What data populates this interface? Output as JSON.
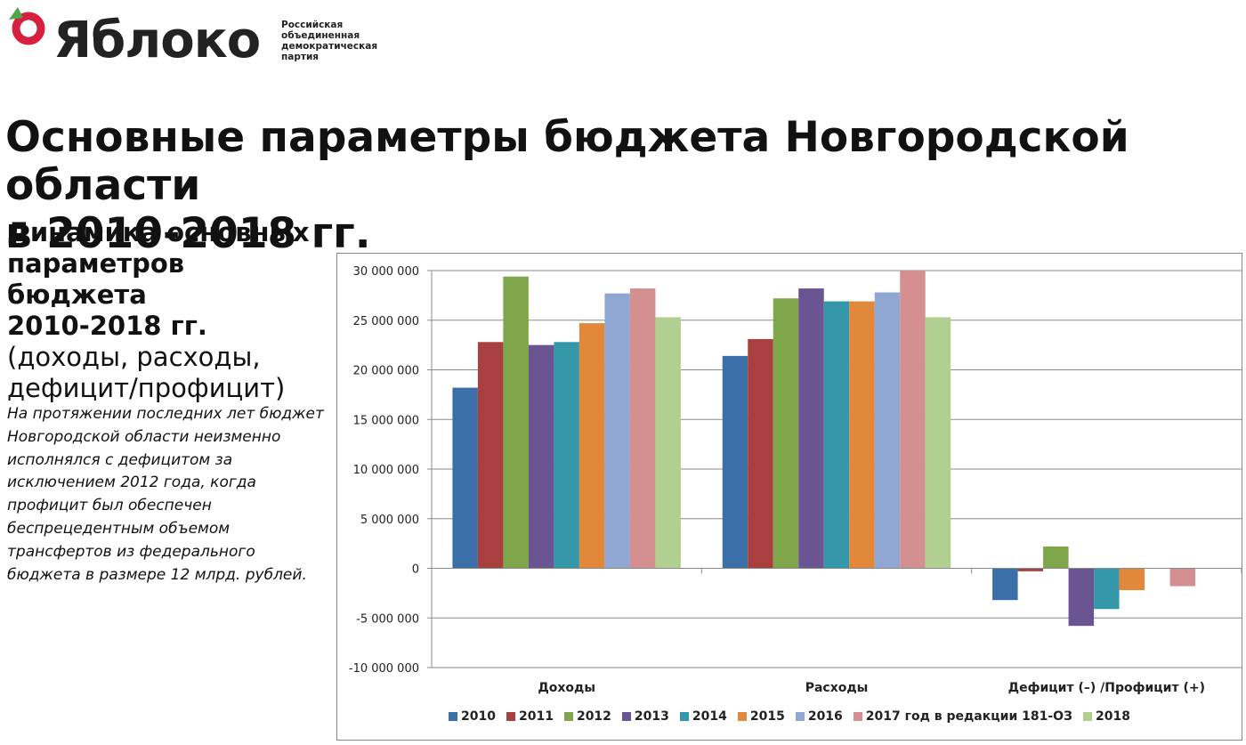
{
  "header": {
    "logo_text": "Яблоко",
    "logo_sub": [
      "Российская",
      "объединенная",
      "демократическая",
      "партия"
    ],
    "logo_colors": {
      "ring": "#d6203f",
      "leaf": "#4aa84a"
    }
  },
  "title": [
    "Основные параметры бюджета Новгородской области",
    "в 2010-2018 гг."
  ],
  "side": {
    "title_bold": [
      "Динамика основных",
      "параметров бюджета",
      "2010-2018 гг."
    ],
    "title_normal": [
      "(доходы, расходы,",
      "дефицит/профицит)"
    ],
    "text": "На протяжении последних лет бюджет Новгородской области неизменно исполнялся с дефицитом за исключением 2012 года, когда профицит был обеспечен беспрецедентным объемом трансфертов из федерального бюджета в размере 12 млрд. рублей."
  },
  "chart_data": {
    "type": "bar",
    "categories": [
      "Доходы",
      "Расходы",
      "Дефицит (–) /Профицит (+)"
    ],
    "ylim": [
      -10000000,
      30000000
    ],
    "yticks": [
      30000000,
      25000000,
      20000000,
      15000000,
      10000000,
      5000000,
      0,
      -5000000,
      -10000000
    ],
    "ytick_labels": [
      "30 000 000",
      "25 000 000",
      "20 000 000",
      "15 000 000",
      "10 000 000",
      "5 000 000",
      "0",
      "-5 000 000",
      "-10 000 000"
    ],
    "grid": true,
    "legend": "bottom",
    "series": [
      {
        "name": "2010",
        "color": "#3a6fa8",
        "values": [
          18200000,
          21400000,
          -3200000
        ]
      },
      {
        "name": "2011",
        "color": "#a84040",
        "values": [
          22800000,
          23100000,
          -300000
        ]
      },
      {
        "name": "2012",
        "color": "#80a64c",
        "values": [
          29400000,
          27200000,
          2200000
        ]
      },
      {
        "name": "2013",
        "color": "#6a5592",
        "values": [
          22500000,
          28200000,
          -5800000
        ]
      },
      {
        "name": "2014",
        "color": "#3498aa",
        "values": [
          22800000,
          26900000,
          -4100000
        ]
      },
      {
        "name": "2015",
        "color": "#e1883a",
        "values": [
          24700000,
          26900000,
          -2200000
        ]
      },
      {
        "name": "2016",
        "color": "#8fa7d2",
        "values": [
          27700000,
          27800000,
          0
        ]
      },
      {
        "name": "2017 год в редакции 181-ОЗ",
        "color": "#d49090",
        "values": [
          28200000,
          30000000,
          -1800000
        ]
      },
      {
        "name": "2018",
        "color": "#b2cf92",
        "values": [
          25300000,
          25300000,
          0
        ]
      }
    ]
  }
}
